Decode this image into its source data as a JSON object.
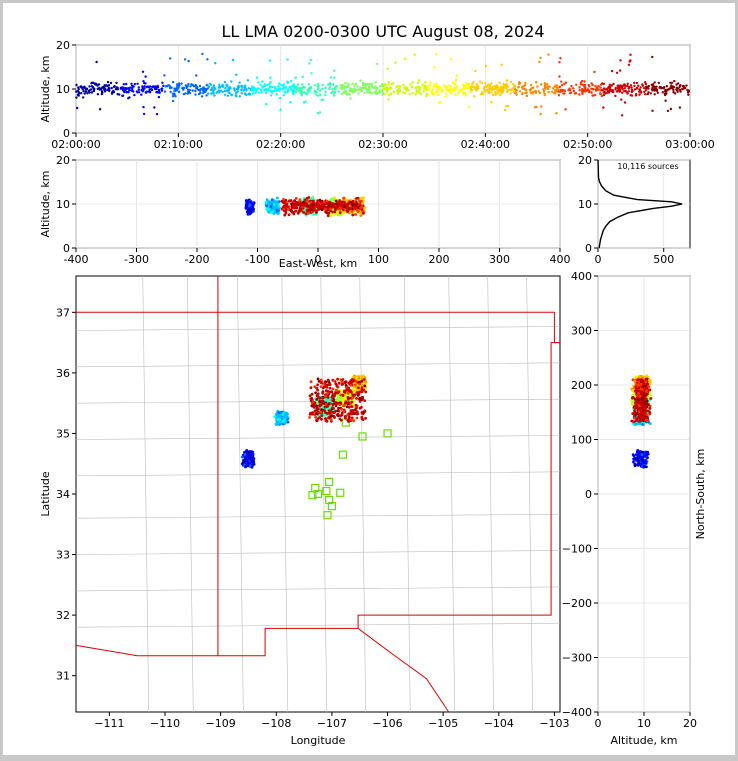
{
  "chart_data": {
    "type": "scatter",
    "title": "LL LMA 0200-0300 UTC August 08, 2024",
    "source_count_label": "10,116 sources",
    "colors": {
      "palette": [
        "#0000a0",
        "#0000ff",
        "#0066ff",
        "#00bfff",
        "#00ffff",
        "#33ffb0",
        "#80ff60",
        "#ccff00",
        "#ffff00",
        "#ffcc00",
        "#ff8800",
        "#ff3300",
        "#cc0000",
        "#880000"
      ],
      "station": "#66dd00",
      "state_border": "#dd0000",
      "county_border": "#bbbbbb"
    },
    "panels": {
      "time_height": {
        "xlabel": "",
        "ylabel": "Altitude, km",
        "xticks": [
          "02:00:00",
          "02:10:00",
          "02:20:00",
          "02:30:00",
          "02:40:00",
          "02:50:00",
          "03:00:00"
        ],
        "yticks": [
          "0",
          "10",
          "20"
        ],
        "xlim_min": [
          0,
          60
        ],
        "ylim": [
          0,
          20
        ]
      },
      "ew_height": {
        "xlabel": "East-West, km",
        "ylabel": "Altitude, km",
        "xticks": [
          "-400",
          "-300",
          "-200",
          "-100",
          "0",
          "100",
          "200",
          "300",
          "400"
        ],
        "yticks": [
          "0",
          "10",
          "20"
        ],
        "xlim": [
          -400,
          400
        ],
        "ylim": [
          0,
          20
        ]
      },
      "histogram": {
        "xticks": [
          "0",
          "500"
        ],
        "yticks": [
          "0",
          "10",
          "20"
        ],
        "xlim": [
          0,
          700
        ],
        "ylim": [
          0,
          20
        ],
        "profile": [
          [
            0,
            8
          ],
          [
            2,
            20
          ],
          [
            4,
            40
          ],
          [
            5,
            60
          ],
          [
            6,
            90
          ],
          [
            7,
            150
          ],
          [
            8,
            230
          ],
          [
            9,
            420
          ],
          [
            9.5,
            560
          ],
          [
            10,
            640
          ],
          [
            10.5,
            560
          ],
          [
            11,
            300
          ],
          [
            12,
            120
          ],
          [
            13,
            60
          ],
          [
            14,
            30
          ],
          [
            15,
            12
          ],
          [
            16,
            4
          ],
          [
            20,
            0
          ]
        ]
      },
      "plan_view": {
        "xlabel": "Longitude",
        "ylabel": "Latitude",
        "xticks": [
          "−111",
          "−110",
          "−109",
          "−108",
          "−107",
          "−106",
          "−105",
          "−104",
          "−103"
        ],
        "yticks": [
          "31",
          "32",
          "33",
          "34",
          "35",
          "36",
          "37"
        ],
        "xlim": [
          -111.6,
          -102.9
        ],
        "ylim": [
          30.4,
          37.6
        ]
      },
      "ns_height": {
        "xlabel": "Altitude, km",
        "ylabel": "North-South, km",
        "xticks": [
          "0",
          "10",
          "20"
        ],
        "yticks": [
          "400",
          "300",
          "200",
          "100",
          "0",
          "−100",
          "−200",
          "−300",
          "−400"
        ],
        "xlim": [
          0,
          20
        ],
        "ylim": [
          -400,
          400
        ]
      }
    },
    "clusters": [
      {
        "t": [
          0,
          8
        ],
        "ew": [
          -118,
          -108
        ],
        "lon": [
          -108.6,
          -108.4
        ],
        "lat": [
          34.45,
          34.7
        ],
        "color_index": 1,
        "weight": 1
      },
      {
        "t": [
          8,
          20
        ],
        "ew": [
          -85,
          -65
        ],
        "lon": [
          -108.0,
          -107.8
        ],
        "lat": [
          35.15,
          35.35
        ],
        "color_index": 3,
        "weight": 1
      },
      {
        "t": [
          15,
          30
        ],
        "ew": [
          -25,
          -5
        ],
        "lon": [
          -107.3,
          -107.0
        ],
        "lat": [
          35.3,
          35.6
        ],
        "color_index": 5,
        "weight": 2
      },
      {
        "t": [
          25,
          40
        ],
        "ew": [
          20,
          45
        ],
        "lon": [
          -106.9,
          -106.6
        ],
        "lat": [
          35.45,
          35.7
        ],
        "color_index": 7,
        "weight": 2
      },
      {
        "t": [
          40,
          50
        ],
        "ew": [
          40,
          75
        ],
        "lon": [
          -106.6,
          -106.4
        ],
        "lat": [
          35.7,
          35.95
        ],
        "color_index": 9,
        "weight": 2
      },
      {
        "t": [
          45,
          60
        ],
        "ew": [
          -60,
          75
        ],
        "lon": [
          -107.4,
          -106.4
        ],
        "lat": [
          35.2,
          35.9
        ],
        "color_index": 12,
        "weight": 3
      }
    ],
    "stations": [
      {
        "lon": -107.05,
        "lat": 34.2
      },
      {
        "lon": -107.3,
        "lat": 34.1
      },
      {
        "lon": -107.25,
        "lat": 34.0
      },
      {
        "lon": -107.35,
        "lat": 33.98
      },
      {
        "lon": -107.1,
        "lat": 34.05
      },
      {
        "lon": -107.05,
        "lat": 33.9
      },
      {
        "lon": -107.0,
        "lat": 33.8
      },
      {
        "lon": -107.08,
        "lat": 33.65
      },
      {
        "lon": -106.85,
        "lat": 34.02
      },
      {
        "lon": -106.8,
        "lat": 34.65
      },
      {
        "lon": -106.75,
        "lat": 35.18
      },
      {
        "lon": -106.45,
        "lat": 34.95
      },
      {
        "lon": -106.0,
        "lat": 35.0
      }
    ],
    "state_border": [
      [
        -111.6,
        37.0
      ],
      [
        -103.0,
        37.0
      ],
      [
        -103.0,
        36.5
      ],
      [
        -102.9,
        36.5
      ]
    ]
  }
}
